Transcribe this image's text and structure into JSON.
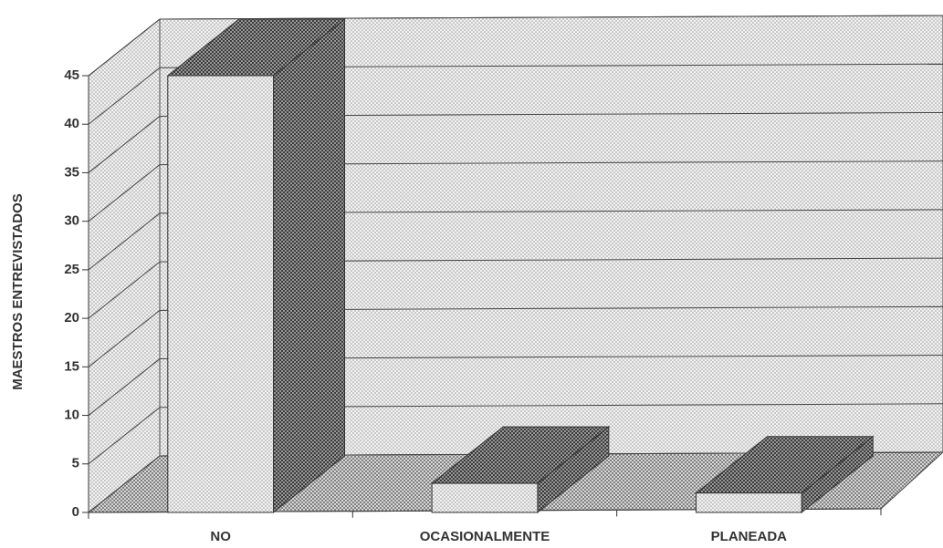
{
  "chart_data": {
    "type": "bar3d",
    "y_label": "MAESTROS ENTREVISTADOS",
    "categories": [
      "NO",
      "OCASIONALMENTE",
      "PLANEADA"
    ],
    "values": [
      45,
      3,
      2
    ],
    "ylim": [
      0,
      45
    ],
    "yticks": [
      0,
      5,
      10,
      15,
      20,
      25,
      30,
      35,
      40,
      45
    ],
    "grid": true,
    "color": "#bdbdbd"
  }
}
